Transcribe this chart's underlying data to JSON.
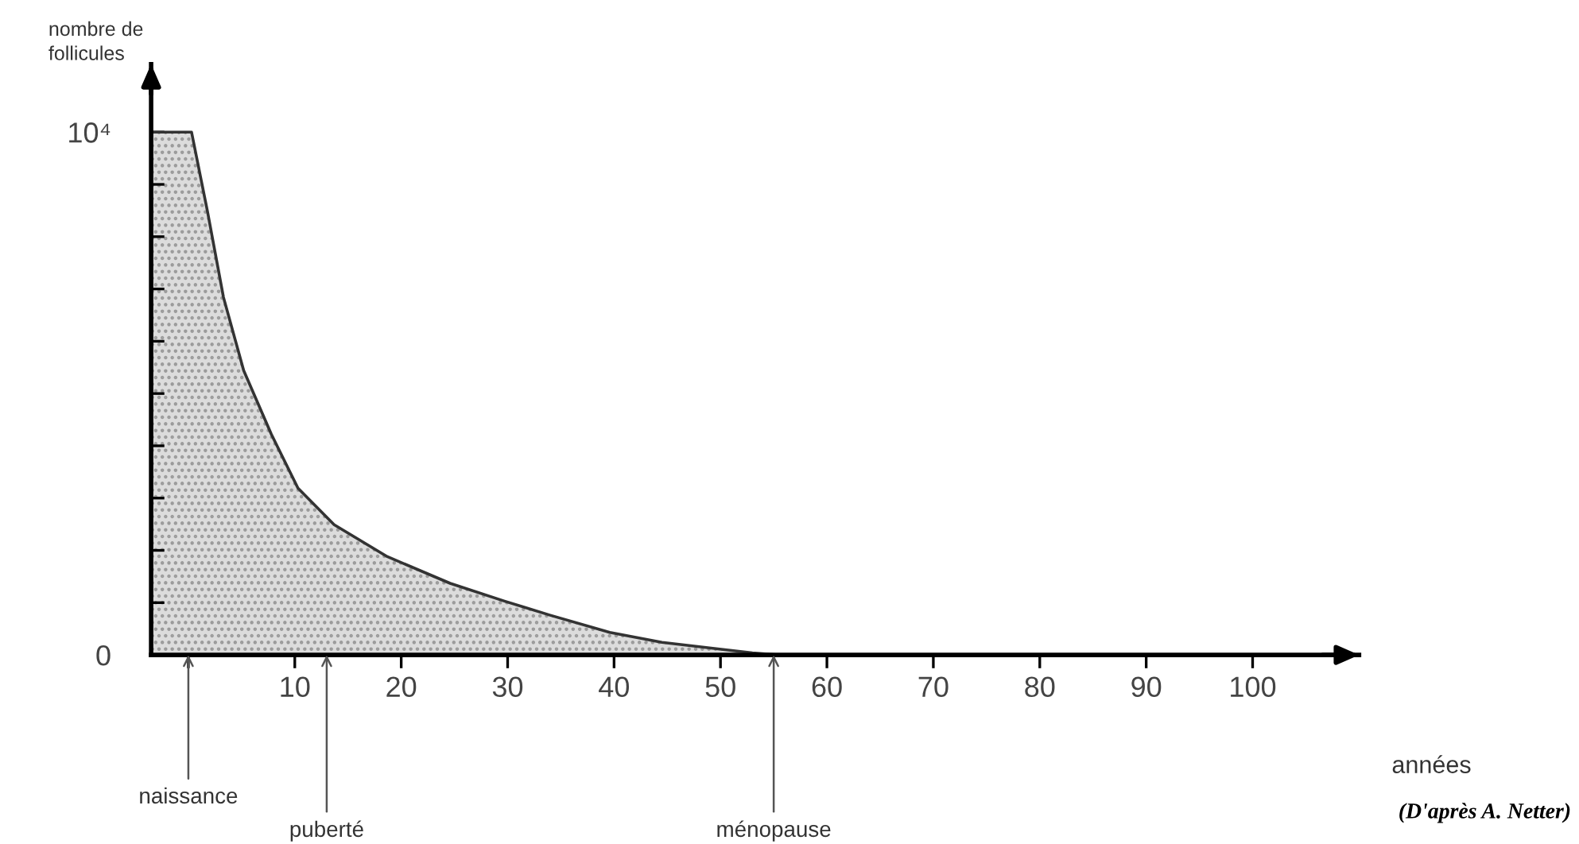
{
  "chart_data": {
    "type": "area",
    "xlabel": "années",
    "ylabel": "nombre de\nfollicules",
    "x": [
      -3.5,
      0.3,
      1.8,
      3.3,
      5.2,
      7.8,
      10.3,
      13.7,
      18.7,
      24.6,
      29.7,
      34.0,
      39.6,
      44.5,
      49.6,
      53.0,
      55.5
    ],
    "series": [
      {
        "color": "#dcdcdc",
        "values": [
          10000,
          10000,
          8480,
          6840,
          5440,
          4220,
          3190,
          2490,
          1880,
          1370,
          1030,
          760,
          430,
          240,
          120,
          40,
          0
        ]
      }
    ],
    "xlim": [
      -3.5,
      110
    ],
    "ylim": [
      0,
      11300
    ],
    "xticks": [
      {
        "value": 0,
        "label": null
      },
      10,
      20,
      30,
      40,
      50,
      60,
      70,
      80,
      90,
      100
    ],
    "yticks": [
      0,
      {
        "value": 1000,
        "label": null
      },
      {
        "value": 2000,
        "label": null
      },
      {
        "value": 3000,
        "label": null
      },
      {
        "value": 4000,
        "label": null
      },
      {
        "value": 5000,
        "label": null
      },
      {
        "value": 6000,
        "label": null
      },
      {
        "value": 7000,
        "label": null
      },
      {
        "value": 8000,
        "label": null
      },
      {
        "value": 9000,
        "label": null
      },
      {
        "value": 10000,
        "label": "10⁴"
      }
    ],
    "annotations": [
      {
        "text": "naissance",
        "x": 0,
        "y": 0
      },
      {
        "text": "puberté",
        "x": 13,
        "y": 0
      },
      {
        "text": "ménopause",
        "x": 55,
        "y": 0
      },
      "(D'après A. Netter)"
    ],
    "grid": false,
    "legend": false
  }
}
